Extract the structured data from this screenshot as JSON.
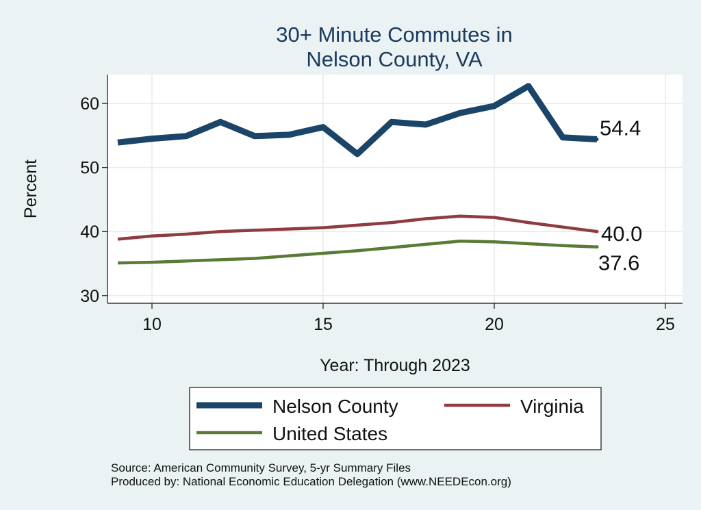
{
  "colors": {
    "background": "#eaf2f3",
    "plot_background": "#ffffff",
    "grid": "#e3ecee",
    "title": "#1a3a5f"
  },
  "chart_data": {
    "type": "line",
    "title_lines": [
      "30+ Minute Commutes in",
      "Nelson County, VA"
    ],
    "xlabel": "Year: Through 2023",
    "ylabel": "Percent",
    "xlim": [
      8.7,
      25.5
    ],
    "ylim": [
      28.8,
      64.5
    ],
    "xticks": [
      10,
      15,
      20,
      25
    ],
    "yticks": [
      30,
      40,
      50,
      60
    ],
    "grid": true,
    "legend_position": "bottom",
    "series": [
      {
        "name": "Nelson County",
        "color": "#1a4468",
        "width": 9,
        "x": [
          9,
          10,
          11,
          12,
          13,
          14,
          15,
          16,
          17,
          18,
          19,
          20,
          21,
          22,
          23
        ],
        "y": [
          53.9,
          54.5,
          54.9,
          57.1,
          54.9,
          55.1,
          56.3,
          52.1,
          57.1,
          56.7,
          58.5,
          59.6,
          62.7,
          54.7,
          54.4
        ],
        "end_label": "54.4"
      },
      {
        "name": "Virginia",
        "color": "#8f3b3f",
        "width": 4.5,
        "x": [
          9,
          10,
          11,
          12,
          13,
          14,
          15,
          16,
          17,
          18,
          19,
          20,
          21,
          22,
          23
        ],
        "y": [
          38.8,
          39.3,
          39.6,
          40.0,
          40.2,
          40.4,
          40.6,
          41.0,
          41.4,
          42.0,
          42.4,
          42.2,
          41.4,
          40.7,
          40.0
        ],
        "end_label": "40.0"
      },
      {
        "name": "United States",
        "color": "#5a7b35",
        "width": 4.5,
        "x": [
          9,
          10,
          11,
          12,
          13,
          14,
          15,
          16,
          17,
          18,
          19,
          20,
          21,
          22,
          23
        ],
        "y": [
          35.1,
          35.2,
          35.4,
          35.6,
          35.8,
          36.2,
          36.6,
          37.0,
          37.5,
          38.0,
          38.5,
          38.4,
          38.1,
          37.8,
          37.6
        ],
        "end_label": "37.6"
      }
    ],
    "source_lines": [
      "Source: American Community Survey, 5-yr Summary Files",
      "Produced by: National Economic Education Delegation (www.NEEDEcon.org)"
    ]
  }
}
